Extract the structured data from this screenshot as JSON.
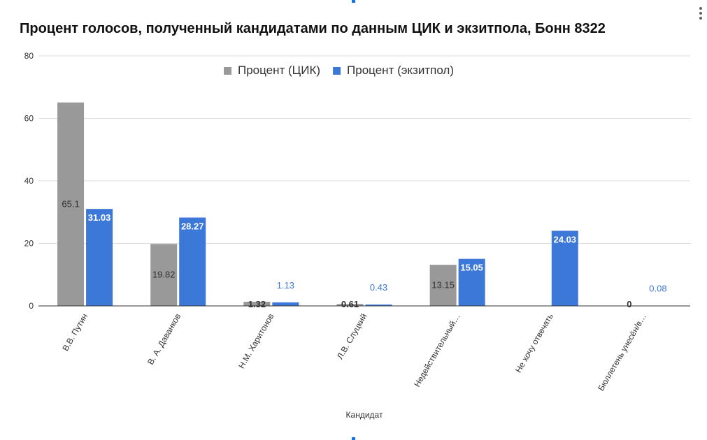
{
  "chart_data": {
    "type": "bar",
    "title": "Процент голосов, полученный кандидатами по данным ЦИК и экзитпола, Бонн 8322",
    "xlabel": "Кандидат",
    "ylabel": "",
    "ylim": [
      0,
      80
    ],
    "yticks": [
      0,
      20,
      40,
      60,
      80
    ],
    "grid": true,
    "legend_position": "top",
    "categories": [
      "В.В. Путин",
      "В. А. Даванков",
      "Н.М. Харитонов",
      "Л.В. Слуцкий",
      "Недействительный…",
      "Не хочу отвечать",
      "Бюллетень унесён/в…"
    ],
    "series": [
      {
        "name": "Процент (ЦИК)",
        "color": "#999999",
        "values": [
          65.1,
          19.82,
          1.32,
          0.61,
          13.15,
          null,
          0
        ],
        "labels": [
          "65.1",
          "19.82",
          "1.32",
          "0.61",
          "13.15",
          "",
          "0"
        ]
      },
      {
        "name": "Процент (экзитпол)",
        "color": "#3c78d8",
        "values": [
          31.03,
          28.27,
          1.13,
          0.43,
          15.05,
          24.03,
          0.08
        ],
        "labels": [
          "31.03",
          "28.27",
          "1.13",
          "0.43",
          "15.05",
          "24.03",
          "0.08"
        ]
      }
    ]
  }
}
